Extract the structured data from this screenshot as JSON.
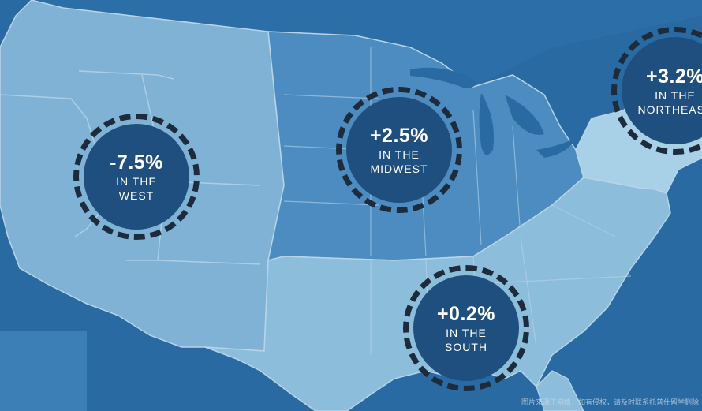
{
  "map": {
    "colors": {
      "ocean": "#2a6aa3",
      "west": "#7fb2d4",
      "midwest": "#4d8cc0",
      "south": "#8cbedb",
      "northeast": "#a8d0e6",
      "borders": "#b8d4e8",
      "badge_fill": "#1f4f7e",
      "badge_ring": "#1d2c3d"
    },
    "regions": [
      {
        "id": "west",
        "value": "-7.5%",
        "label_line1": "IN THE",
        "label_line2": "WEST"
      },
      {
        "id": "midwest",
        "value": "+2.5%",
        "label_line1": "IN THE",
        "label_line2": "MIDWEST"
      },
      {
        "id": "south",
        "value": "+0.2%",
        "label_line1": "IN THE",
        "label_line2": "SOUTH"
      },
      {
        "id": "northeast",
        "value": "+3.2%",
        "label_line1": "IN THE",
        "label_line2": "NORTHEAST"
      }
    ]
  },
  "watermark": "图片来源于网络，如有侵权，请及时联系托普仕留学删除"
}
